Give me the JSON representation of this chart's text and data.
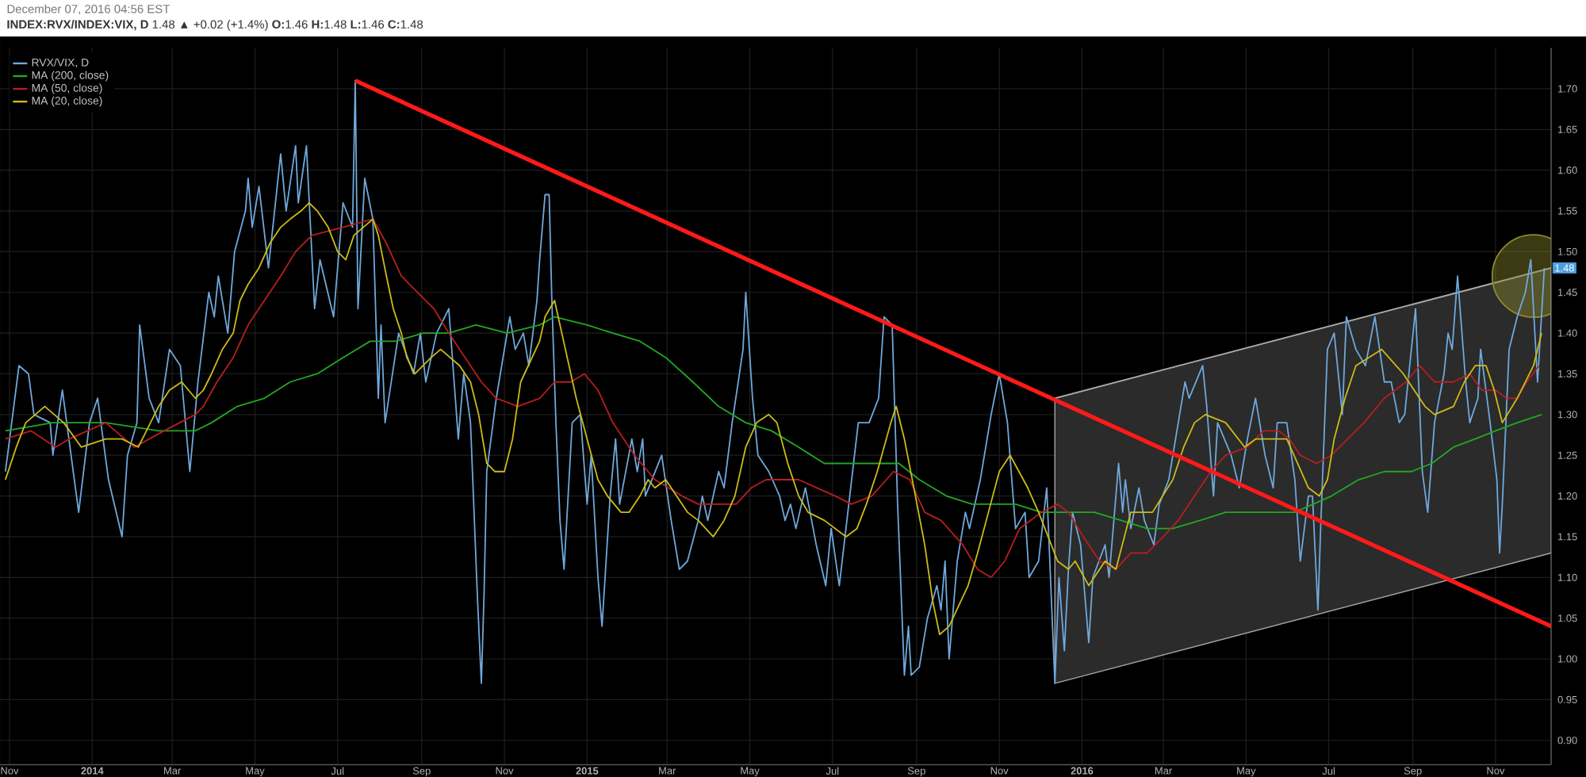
{
  "chart_data": {
    "type": "line",
    "title": "December 07, 2016 04:56 EST",
    "subtitle": "**INDEX:RVX/INDEX:VIX, D** 1.48 ▲ +0.02 (+1.4%) **O:**1.46 **H:**1.48 **L:**1.46 **C:**1.48",
    "xlim": [
      "2013-10-25",
      "2016-12-12"
    ],
    "ylim": [
      0.87,
      1.75
    ],
    "xticks": [
      {
        "value": "2013-11-01",
        "label": "Nov"
      },
      {
        "value": "2014-01-01",
        "label": "2014"
      },
      {
        "value": "2014-03-01",
        "label": "Mar"
      },
      {
        "value": "2014-05-01",
        "label": "May"
      },
      {
        "value": "2014-07-01",
        "label": "Jul"
      },
      {
        "value": "2014-09-01",
        "label": "Sep"
      },
      {
        "value": "2014-11-01",
        "label": "Nov"
      },
      {
        "value": "2015-01-01",
        "label": "2015"
      },
      {
        "value": "2015-03-01",
        "label": "Mar"
      },
      {
        "value": "2015-05-01",
        "label": "May"
      },
      {
        "value": "2015-07-01",
        "label": "Jul"
      },
      {
        "value": "2015-09-01",
        "label": "Sep"
      },
      {
        "value": "2015-11-01",
        "label": "Nov"
      },
      {
        "value": "2016-01-01",
        "label": "2016"
      },
      {
        "value": "2016-03-01",
        "label": "Mar"
      },
      {
        "value": "2016-05-01",
        "label": "May"
      },
      {
        "value": "2016-07-01",
        "label": "Jul"
      },
      {
        "value": "2016-09-01",
        "label": "Sep"
      },
      {
        "value": "2016-11-01",
        "label": "Nov"
      }
    ],
    "yticks": [
      {
        "value": 0.9,
        "label": "0.90"
      },
      {
        "value": 0.95,
        "label": "0.95"
      },
      {
        "value": 1.0,
        "label": "1.00"
      },
      {
        "value": 1.05,
        "label": "1.05"
      },
      {
        "value": 1.1,
        "label": "1.10"
      },
      {
        "value": 1.15,
        "label": "1.15"
      },
      {
        "value": 1.2,
        "label": "1.20"
      },
      {
        "value": 1.25,
        "label": "1.25"
      },
      {
        "value": 1.3,
        "label": "1.30"
      },
      {
        "value": 1.35,
        "label": "1.35"
      },
      {
        "value": 1.4,
        "label": "1.40"
      },
      {
        "value": 1.45,
        "label": "1.45"
      },
      {
        "value": 1.5,
        "label": "1.50"
      },
      {
        "value": 1.55,
        "label": "1.55"
      },
      {
        "value": 1.6,
        "label": "1.60"
      },
      {
        "value": 1.65,
        "label": "1.65"
      },
      {
        "value": 1.7,
        "label": "1.70"
      }
    ],
    "grid": true,
    "legend": "top left",
    "annotations": [
      {
        "text": "1.48",
        "x": "2016-12-07",
        "y": 1.48
      }
    ],
    "series": [
      {
        "color": "#a6a6a6",
        "x": [
          "2015-12-12",
          "2016-12-12"
        ],
        "values": [
          1.32,
          1.48
        ],
        "lower": [
          0.97,
          1.13
        ],
        "upper": [
          1.32,
          1.48
        ]
      },
      {
        "type": "bubble",
        "color": "#8c8a2c",
        "x": [
          "2016-11-29"
        ],
        "values": [
          1.47
        ],
        "sizes": [
          1
        ]
      },
      {
        "name": "RVX/VIX, D",
        "color": "#6fa8dc",
        "x": [
          "2013-10-29",
          "2013-11-08",
          "2013-11-15",
          "2013-11-19",
          "2013-12-01",
          "2013-12-03",
          "2013-12-10",
          "2013-12-22",
          "2013-12-30",
          "2014-01-05",
          "2014-01-13",
          "2014-01-23",
          "2014-01-27",
          "2014-02-03",
          "2014-02-05",
          "2014-02-12",
          "2014-02-19",
          "2014-02-27",
          "2014-03-07",
          "2014-03-14",
          "2014-03-20",
          "2014-03-28",
          "2014-04-01",
          "2014-04-04",
          "2014-04-11",
          "2014-04-16",
          "2014-04-24",
          "2014-04-26",
          "2014-04-29",
          "2014-05-04",
          "2014-05-11",
          "2014-05-20",
          "2014-05-24",
          "2014-05-31",
          "2014-06-02",
          "2014-06-08",
          "2014-06-14",
          "2014-06-18",
          "2014-06-28",
          "2014-07-05",
          "2014-07-12",
          "2014-07-14",
          "2014-07-16",
          "2014-07-21",
          "2014-07-27",
          "2014-07-31",
          "2014-08-02",
          "2014-08-05",
          "2014-08-15",
          "2014-08-26",
          "2014-08-31",
          "2014-09-04",
          "2014-09-12",
          "2014-09-21",
          "2014-09-28",
          "2014-10-02",
          "2014-10-07",
          "2014-10-12",
          "2014-10-15",
          "2014-10-17",
          "2014-10-19",
          "2014-10-26",
          "2014-11-05",
          "2014-11-09",
          "2014-11-15",
          "2014-11-19",
          "2014-11-25",
          "2014-11-27",
          "2014-12-01",
          "2014-12-04",
          "2014-12-06",
          "2014-12-09",
          "2014-12-12",
          "2014-12-15",
          "2014-12-21",
          "2014-12-27",
          "2015-01-01",
          "2015-01-04",
          "2015-01-09",
          "2015-01-12",
          "2015-01-18",
          "2015-01-22",
          "2015-01-25",
          "2015-02-03",
          "2015-02-07",
          "2015-02-11",
          "2015-02-13",
          "2015-02-25",
          "2015-03-04",
          "2015-03-10",
          "2015-03-16",
          "2015-03-24",
          "2015-03-27",
          "2015-03-31",
          "2015-04-08",
          "2015-04-12",
          "2015-04-18",
          "2015-04-26",
          "2015-04-28",
          "2015-05-03",
          "2015-05-07",
          "2015-05-15",
          "2015-05-23",
          "2015-05-27",
          "2015-05-31",
          "2015-06-04",
          "2015-06-11",
          "2015-06-19",
          "2015-06-26",
          "2015-06-30",
          "2015-07-06",
          "2015-07-13",
          "2015-07-20",
          "2015-07-28",
          "2015-08-04",
          "2015-08-08",
          "2015-08-14",
          "2015-08-18",
          "2015-08-23",
          "2015-08-26",
          "2015-08-28",
          "2015-09-03",
          "2015-09-09",
          "2015-09-16",
          "2015-09-19",
          "2015-09-22",
          "2015-09-25",
          "2015-10-01",
          "2015-10-07",
          "2015-10-10",
          "2015-10-18",
          "2015-10-26",
          "2015-11-01",
          "2015-11-07",
          "2015-11-13",
          "2015-11-20",
          "2015-11-23",
          "2015-11-30",
          "2015-12-06",
          "2015-12-09",
          "2015-12-12",
          "2015-12-15",
          "2015-12-19",
          "2015-12-22",
          "2015-12-25",
          "2015-12-31",
          "2016-01-06",
          "2016-01-09",
          "2016-01-18",
          "2016-01-21",
          "2016-01-28",
          "2016-01-31",
          "2016-02-02",
          "2016-02-06",
          "2016-02-12",
          "2016-02-16",
          "2016-02-23",
          "2016-02-27",
          "2016-03-05",
          "2016-03-12",
          "2016-03-17",
          "2016-03-20",
          "2016-03-30",
          "2016-04-02",
          "2016-04-07",
          "2016-04-10",
          "2016-04-20",
          "2016-04-26",
          "2016-05-02",
          "2016-05-08",
          "2016-05-15",
          "2016-05-21",
          "2016-05-24",
          "2016-05-31",
          "2016-06-06",
          "2016-06-10",
          "2016-06-16",
          "2016-06-19",
          "2016-06-23",
          "2016-06-25",
          "2016-06-30",
          "2016-07-05",
          "2016-07-11",
          "2016-07-14",
          "2016-07-21",
          "2016-07-28",
          "2016-08-04",
          "2016-08-11",
          "2016-08-16",
          "2016-08-22",
          "2016-08-26",
          "2016-09-03",
          "2016-09-08",
          "2016-09-12",
          "2016-09-17",
          "2016-09-24",
          "2016-09-27",
          "2016-09-30",
          "2016-10-04",
          "2016-10-10",
          "2016-10-13",
          "2016-10-19",
          "2016-10-21",
          "2016-10-28",
          "2016-11-02",
          "2016-11-04",
          "2016-11-06",
          "2016-11-11",
          "2016-11-17",
          "2016-11-23",
          "2016-11-27",
          "2016-11-29",
          "2016-12-02",
          "2016-12-07"
        ],
        "values": [
          1.23,
          1.36,
          1.35,
          1.3,
          1.29,
          1.25,
          1.33,
          1.18,
          1.29,
          1.32,
          1.22,
          1.15,
          1.25,
          1.29,
          1.41,
          1.32,
          1.29,
          1.38,
          1.36,
          1.23,
          1.34,
          1.45,
          1.42,
          1.47,
          1.4,
          1.5,
          1.55,
          1.59,
          1.53,
          1.58,
          1.48,
          1.62,
          1.55,
          1.63,
          1.56,
          1.63,
          1.43,
          1.49,
          1.42,
          1.56,
          1.53,
          1.71,
          1.43,
          1.59,
          1.54,
          1.32,
          1.41,
          1.29,
          1.4,
          1.35,
          1.4,
          1.34,
          1.4,
          1.43,
          1.27,
          1.35,
          1.29,
          1.08,
          0.97,
          1.08,
          1.23,
          1.32,
          1.42,
          1.38,
          1.4,
          1.36,
          1.44,
          1.49,
          1.57,
          1.57,
          1.44,
          1.29,
          1.17,
          1.11,
          1.29,
          1.3,
          1.19,
          1.25,
          1.1,
          1.04,
          1.2,
          1.27,
          1.19,
          1.27,
          1.23,
          1.27,
          1.2,
          1.25,
          1.17,
          1.11,
          1.12,
          1.17,
          1.2,
          1.17,
          1.23,
          1.21,
          1.29,
          1.38,
          1.45,
          1.32,
          1.25,
          1.23,
          1.2,
          1.17,
          1.19,
          1.16,
          1.21,
          1.14,
          1.09,
          1.16,
          1.09,
          1.19,
          1.29,
          1.29,
          1.32,
          1.42,
          1.41,
          1.19,
          0.98,
          1.04,
          0.98,
          0.99,
          1.05,
          1.09,
          1.06,
          1.12,
          1.0,
          1.12,
          1.18,
          1.16,
          1.22,
          1.3,
          1.35,
          1.29,
          1.16,
          1.18,
          1.1,
          1.12,
          1.21,
          1.09,
          0.97,
          1.1,
          1.01,
          1.11,
          1.18,
          1.14,
          1.02,
          1.1,
          1.14,
          1.1,
          1.24,
          1.18,
          1.22,
          1.16,
          1.21,
          1.17,
          1.14,
          1.19,
          1.22,
          1.29,
          1.34,
          1.32,
          1.36,
          1.31,
          1.2,
          1.29,
          1.25,
          1.21,
          1.27,
          1.32,
          1.25,
          1.21,
          1.29,
          1.29,
          1.22,
          1.12,
          1.2,
          1.2,
          1.06,
          1.16,
          1.38,
          1.4,
          1.3,
          1.42,
          1.38,
          1.36,
          1.42,
          1.34,
          1.34,
          1.29,
          1.3,
          1.43,
          1.23,
          1.18,
          1.29,
          1.35,
          1.4,
          1.38,
          1.47,
          1.34,
          1.29,
          1.32,
          1.38,
          1.29,
          1.22,
          1.13,
          1.19,
          1.38,
          1.42,
          1.45,
          1.49,
          1.43,
          1.34,
          1.48
        ]
      },
      {
        "name": "MA (200, close)",
        "color": "#22a822",
        "x": [
          "2013-10-29",
          "2013-12-03",
          "2014-01-11",
          "2014-02-19",
          "2014-03-18",
          "2014-03-30",
          "2014-04-18",
          "2014-05-08",
          "2014-05-27",
          "2014-06-16",
          "2014-07-05",
          "2014-07-25",
          "2014-08-13",
          "2014-09-02",
          "2014-09-21",
          "2014-10-11",
          "2014-11-03",
          "2014-11-27",
          "2014-12-08",
          "2015-01-01",
          "2015-01-20",
          "2015-02-09",
          "2015-02-28",
          "2015-03-20",
          "2015-04-08",
          "2015-04-28",
          "2015-05-17",
          "2015-06-06",
          "2015-06-25",
          "2015-07-15",
          "2015-08-03",
          "2015-08-19",
          "2015-09-03",
          "2015-09-23",
          "2015-10-12",
          "2015-10-28",
          "2015-11-13",
          "2015-12-02",
          "2015-12-22",
          "2016-01-10",
          "2016-01-30",
          "2016-02-18",
          "2016-03-08",
          "2016-03-28",
          "2016-04-16",
          "2016-05-06",
          "2016-05-25",
          "2016-06-06",
          "2016-07-03",
          "2016-07-23",
          "2016-08-11",
          "2016-08-31",
          "2016-09-15",
          "2016-10-01",
          "2016-10-17",
          "2016-11-01",
          "2016-11-17",
          "2016-12-05"
        ],
        "values": [
          1.28,
          1.29,
          1.29,
          1.28,
          1.28,
          1.29,
          1.31,
          1.32,
          1.34,
          1.35,
          1.37,
          1.39,
          1.39,
          1.4,
          1.4,
          1.41,
          1.4,
          1.41,
          1.42,
          1.41,
          1.4,
          1.39,
          1.37,
          1.34,
          1.31,
          1.29,
          1.28,
          1.26,
          1.24,
          1.24,
          1.24,
          1.24,
          1.22,
          1.2,
          1.19,
          1.19,
          1.19,
          1.18,
          1.18,
          1.18,
          1.17,
          1.16,
          1.16,
          1.17,
          1.18,
          1.18,
          1.18,
          1.18,
          1.2,
          1.22,
          1.23,
          1.23,
          1.24,
          1.26,
          1.27,
          1.28,
          1.29,
          1.3
        ]
      },
      {
        "name": "MA (50, close)",
        "color": "#b81e1e",
        "x": [
          "2013-10-29",
          "2013-11-17",
          "2013-12-05",
          "2013-12-15",
          "2014-01-11",
          "2014-02-01",
          "2014-02-23",
          "2014-03-18",
          "2014-03-24",
          "2014-04-03",
          "2014-04-15",
          "2014-04-26",
          "2014-05-08",
          "2014-05-20",
          "2014-05-31",
          "2014-06-12",
          "2014-07-05",
          "2014-07-27",
          "2014-08-06",
          "2014-08-17",
          "2014-08-29",
          "2014-09-10",
          "2014-09-21",
          "2014-10-03",
          "2014-10-15",
          "2014-10-26",
          "2014-11-11",
          "2014-11-27",
          "2014-12-08",
          "2014-12-20",
          "2014-12-30",
          "2015-01-09",
          "2015-01-20",
          "2015-02-05",
          "2015-02-20",
          "2015-03-12",
          "2015-03-24",
          "2015-04-21",
          "2015-05-02",
          "2015-05-13",
          "2015-06-06",
          "2015-07-03",
          "2015-07-15",
          "2015-07-30",
          "2015-08-15",
          "2015-08-27",
          "2015-09-07",
          "2015-09-19",
          "2015-10-05",
          "2015-10-16",
          "2015-10-26",
          "2015-11-05",
          "2015-11-16",
          "2015-12-02",
          "2015-12-14",
          "2015-12-22",
          "2016-01-02",
          "2016-01-14",
          "2016-01-26",
          "2016-02-06",
          "2016-02-18",
          "2016-03-01",
          "2016-03-12",
          "2016-03-24",
          "2016-04-05",
          "2016-04-16",
          "2016-05-02",
          "2016-05-14",
          "2016-05-25",
          "2016-06-02",
          "2016-06-10",
          "2016-06-22",
          "2016-07-03",
          "2016-07-15",
          "2016-07-27",
          "2016-08-11",
          "2016-08-27",
          "2016-09-06",
          "2016-09-17",
          "2016-10-01",
          "2016-10-13",
          "2016-10-22",
          "2016-11-01",
          "2016-11-09",
          "2016-11-17",
          "2016-11-24",
          "2016-12-03"
        ],
        "values": [
          1.27,
          1.28,
          1.26,
          1.27,
          1.29,
          1.26,
          1.28,
          1.3,
          1.31,
          1.34,
          1.37,
          1.41,
          1.44,
          1.47,
          1.5,
          1.52,
          1.53,
          1.54,
          1.51,
          1.47,
          1.45,
          1.43,
          1.4,
          1.37,
          1.34,
          1.32,
          1.31,
          1.32,
          1.34,
          1.34,
          1.35,
          1.33,
          1.29,
          1.25,
          1.22,
          1.2,
          1.19,
          1.19,
          1.21,
          1.22,
          1.22,
          1.2,
          1.19,
          1.2,
          1.23,
          1.22,
          1.18,
          1.17,
          1.14,
          1.11,
          1.1,
          1.12,
          1.16,
          1.18,
          1.19,
          1.18,
          1.15,
          1.12,
          1.11,
          1.13,
          1.13,
          1.15,
          1.17,
          1.2,
          1.23,
          1.25,
          1.26,
          1.28,
          1.28,
          1.27,
          1.25,
          1.24,
          1.25,
          1.27,
          1.29,
          1.32,
          1.34,
          1.36,
          1.34,
          1.34,
          1.35,
          1.33,
          1.33,
          1.32,
          1.32,
          1.34,
          1.36
        ]
      },
      {
        "name": "MA (20, close)",
        "color": "#cdbb18",
        "x": [
          "2013-10-29",
          "2013-11-06",
          "2013-11-13",
          "2013-11-27",
          "2013-12-11",
          "2013-12-24",
          "2014-01-11",
          "2014-01-23",
          "2014-02-04",
          "2014-02-19",
          "2014-02-27",
          "2014-03-08",
          "2014-03-18",
          "2014-03-24",
          "2014-03-30",
          "2014-04-07",
          "2014-04-15",
          "2014-04-20",
          "2014-04-26",
          "2014-05-04",
          "2014-05-12",
          "2014-05-20",
          "2014-05-27",
          "2014-06-04",
          "2014-06-10",
          "2014-06-16",
          "2014-06-24",
          "2014-07-01",
          "2014-07-07",
          "2014-07-13",
          "2014-07-27",
          "2014-07-31",
          "2014-08-06",
          "2014-08-11",
          "2014-08-17",
          "2014-08-21",
          "2014-08-27",
          "2014-09-08",
          "2014-09-15",
          "2014-09-29",
          "2014-10-07",
          "2014-10-13",
          "2014-10-19",
          "2014-10-25",
          "2014-11-01",
          "2014-11-07",
          "2014-11-13",
          "2014-11-27",
          "2014-12-01",
          "2014-12-08",
          "2014-12-16",
          "2014-12-24",
          "2015-01-01",
          "2015-01-09",
          "2015-01-16",
          "2015-01-26",
          "2015-02-01",
          "2015-02-09",
          "2015-02-15",
          "2015-02-20",
          "2015-02-28",
          "2015-03-16",
          "2015-03-24",
          "2015-04-04",
          "2015-04-12",
          "2015-04-20",
          "2015-04-28",
          "2015-05-06",
          "2015-05-15",
          "2015-05-21",
          "2015-05-29",
          "2015-06-06",
          "2015-06-13",
          "2015-06-25",
          "2015-07-11",
          "2015-07-19",
          "2015-07-26",
          "2015-08-03",
          "2015-08-13",
          "2015-08-17",
          "2015-08-23",
          "2015-08-30",
          "2015-09-07",
          "2015-09-13",
          "2015-09-18",
          "2015-09-25",
          "2015-10-09",
          "2015-10-16",
          "2015-10-24",
          "2015-11-01",
          "2015-11-09",
          "2015-11-22",
          "2015-11-30",
          "2015-12-14",
          "2015-12-22",
          "2015-12-27",
          "2016-01-06",
          "2016-01-18",
          "2016-01-26",
          "2016-02-06",
          "2016-02-22",
          "2016-03-08",
          "2016-03-16",
          "2016-03-24",
          "2016-04-01",
          "2016-04-16",
          "2016-04-30",
          "2016-05-08",
          "2016-05-31",
          "2016-06-08",
          "2016-06-16",
          "2016-06-24",
          "2016-06-30",
          "2016-07-05",
          "2016-07-13",
          "2016-07-21",
          "2016-08-09",
          "2016-08-25",
          "2016-09-10",
          "2016-09-17",
          "2016-10-01",
          "2016-10-09",
          "2016-10-17",
          "2016-10-25",
          "2016-10-31",
          "2016-11-06",
          "2016-11-17",
          "2016-11-29",
          "2016-12-05"
        ],
        "values": [
          1.22,
          1.26,
          1.29,
          1.31,
          1.29,
          1.26,
          1.27,
          1.27,
          1.26,
          1.31,
          1.33,
          1.34,
          1.32,
          1.33,
          1.35,
          1.38,
          1.4,
          1.44,
          1.46,
          1.48,
          1.51,
          1.53,
          1.54,
          1.55,
          1.56,
          1.55,
          1.53,
          1.5,
          1.49,
          1.52,
          1.54,
          1.52,
          1.47,
          1.43,
          1.4,
          1.37,
          1.35,
          1.37,
          1.38,
          1.36,
          1.34,
          1.3,
          1.24,
          1.23,
          1.23,
          1.27,
          1.34,
          1.39,
          1.42,
          1.44,
          1.38,
          1.32,
          1.27,
          1.22,
          1.2,
          1.18,
          1.18,
          1.2,
          1.22,
          1.21,
          1.22,
          1.18,
          1.17,
          1.15,
          1.17,
          1.2,
          1.26,
          1.29,
          1.3,
          1.29,
          1.24,
          1.2,
          1.18,
          1.17,
          1.15,
          1.16,
          1.19,
          1.23,
          1.29,
          1.31,
          1.27,
          1.21,
          1.14,
          1.07,
          1.03,
          1.04,
          1.09,
          1.13,
          1.18,
          1.23,
          1.25,
          1.21,
          1.18,
          1.12,
          1.11,
          1.12,
          1.09,
          1.12,
          1.11,
          1.18,
          1.18,
          1.22,
          1.26,
          1.29,
          1.3,
          1.29,
          1.26,
          1.27,
          1.27,
          1.24,
          1.21,
          1.2,
          1.22,
          1.27,
          1.32,
          1.36,
          1.38,
          1.35,
          1.31,
          1.3,
          1.31,
          1.34,
          1.36,
          1.36,
          1.33,
          1.29,
          1.32,
          1.36,
          1.4
        ]
      },
      {
        "color": "#ff1a1a",
        "x": [
          "2014-07-14",
          "2016-12-12"
        ],
        "values": [
          1.71,
          1.04
        ]
      }
    ]
  }
}
